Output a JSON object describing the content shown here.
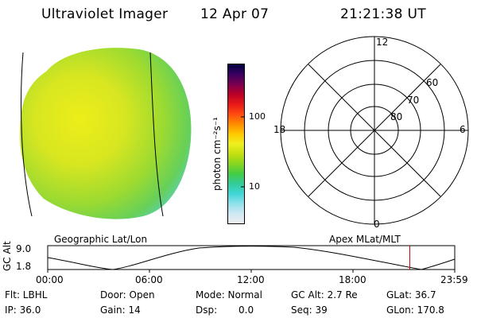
{
  "header": {
    "instrument": "Ultraviolet Imager",
    "date": "12 Apr 07",
    "time": "21:21:38 UT"
  },
  "colorbar": {
    "unit_label": "photon cm⁻²s⁻¹",
    "ticks": [
      "100",
      "10"
    ],
    "colors": [
      "#eeeeee",
      "#cfe8f4",
      "#8fe0ea",
      "#3fd6d6",
      "#33cc99",
      "#44cc44",
      "#88d620",
      "#c4e010",
      "#f0f020",
      "#ffc800",
      "#ff8c00",
      "#ff4a10",
      "#e81818",
      "#b80028",
      "#7a0050",
      "#3a0060",
      "#000040"
    ]
  },
  "polar_grid": {
    "mlt_labels": {
      "top": "12",
      "left": "18",
      "right": "6",
      "bottom": "0"
    },
    "lat_labels": [
      "60",
      "70",
      "80"
    ]
  },
  "timeline": {
    "title_left": "Geographic Lat/Lon",
    "title_right": "Apex MLat/MLT",
    "y_axis_label": "GC Alt",
    "y_max": "9.0",
    "y_min": "1.8",
    "x_ticks": [
      "00:00",
      "06:00",
      "12:00",
      "18:00",
      "23:59"
    ],
    "marker_time": "21:21",
    "marker_color": "#cc0000"
  },
  "status": {
    "flt": "Flt: LBHL",
    "door": "Door: Open",
    "mode": "Mode: Normal",
    "gc_alt": "GC Alt: 2.7 Re",
    "glat": "GLat: 36.7",
    "ip": "IP: 36.0",
    "gain": "Gain: 14",
    "dsp_label": "Dsp:",
    "dsp_value": "0.0",
    "seq": "Seq: 39",
    "glon": "GLon: 170.8"
  },
  "image_panel": {
    "colors": {
      "bright": "#e8ec20",
      "mid": "#aadc28",
      "dim": "#55d060",
      "edge": "#55d0d8"
    }
  }
}
